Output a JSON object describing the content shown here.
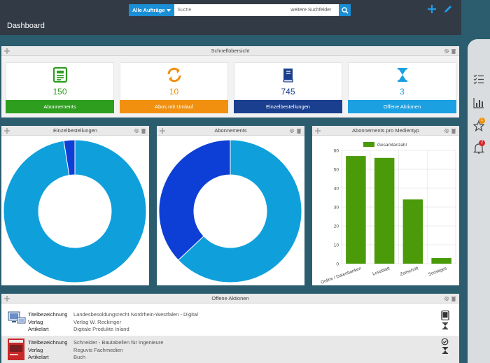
{
  "header": {
    "scope_label": "Alle Aufträge",
    "search_placeholder": "Suche",
    "more_fields": "weitere Suchfelder",
    "page_title": "Dashboard"
  },
  "rail": {
    "favorites_badge": "1",
    "alerts_badge": "2"
  },
  "overview": {
    "title": "Schnellübersicht",
    "cards": [
      {
        "value": "150",
        "label": "Abonnements",
        "color": "#2e9e1f"
      },
      {
        "value": "10",
        "label": "Abos mit Umlauf",
        "color": "#f0900e"
      },
      {
        "value": "745",
        "label": "Einzelbestellungen",
        "color": "#1a3f8f"
      },
      {
        "value": "3",
        "label": "Offene Aktionen",
        "color": "#1ba0e2"
      }
    ]
  },
  "einzel": {
    "title": "Einzelbestellungen"
  },
  "abos": {
    "title": "Abonnements"
  },
  "medien": {
    "title": "Abonnements pro Medientyp"
  },
  "actions": {
    "title": "Offene Aktionen",
    "key_title": "Titelbezeichnung",
    "key_publisher": "Verlag",
    "key_type": "Artikelart",
    "rows": [
      {
        "title": "Landesbesoldungsrecht Nordrhein-Westfalen - Digital",
        "publisher": "Verlag W. Reckinger",
        "type": "Digitale Produkte Inland"
      },
      {
        "title": "Schneider - Bautabellen für Ingenieure",
        "publisher": "Reguvis Fachmedien",
        "type": "Buch"
      }
    ]
  },
  "chart_data": [
    {
      "type": "pie",
      "title": "Einzelbestellungen",
      "values": [
        97.5,
        2.5
      ],
      "colors": [
        "#0fa0dc",
        "#0d3fd6"
      ]
    },
    {
      "type": "pie",
      "title": "Abonnements",
      "values": [
        63,
        37
      ],
      "colors": [
        "#0fa0dc",
        "#0d3fd6"
      ]
    },
    {
      "type": "bar",
      "title": "Abonnements pro Medientyp",
      "categories": [
        "Online / Datenbanken",
        "Loseblatt",
        "Zeitschrift",
        "Sonstiges"
      ],
      "series": [
        {
          "name": "Gesamtanzahl",
          "values": [
            57,
            56,
            34,
            3
          ]
        }
      ],
      "ylim": [
        0,
        60
      ],
      "yticks": [
        0,
        10,
        20,
        30,
        40,
        50,
        60
      ],
      "color": "#4a9a0a",
      "grid": true,
      "legend": "top"
    }
  ]
}
